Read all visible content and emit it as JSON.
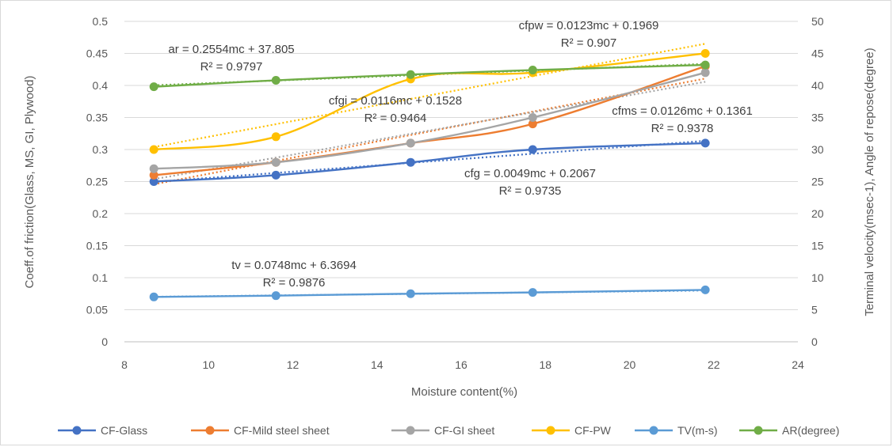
{
  "chart_data": {
    "type": "line",
    "xlabel": "Moisture content(%)",
    "ylabel_left": "Coeff.of friction(Glass, MS, GI, Plywood)",
    "ylabel_right": "Terminal velocity(msec-1), Angle of repose(degree)",
    "xlim": [
      8,
      24
    ],
    "ylim_left": [
      0,
      0.5
    ],
    "ylim_right": [
      0,
      50
    ],
    "x_ticks": [
      "8",
      "10",
      "12",
      "14",
      "16",
      "18",
      "20",
      "22",
      "24"
    ],
    "y_left_ticks": [
      "0",
      "0.05",
      "0.1",
      "0.15",
      "0.2",
      "0.25",
      "0.3",
      "0.35",
      "0.4",
      "0.45",
      "0.5"
    ],
    "y_right_ticks": [
      "0",
      "5",
      "10",
      "15",
      "20",
      "25",
      "30",
      "35",
      "40",
      "45",
      "50"
    ],
    "x": [
      8.7,
      11.6,
      14.8,
      17.7,
      21.8
    ],
    "grid": "horizontal",
    "legend": "bottom",
    "series": [
      {
        "name": "CF-Glass",
        "axis": "left",
        "color": "#4472c4",
        "values": [
          0.25,
          0.26,
          0.28,
          0.3,
          0.31
        ],
        "trend": {
          "slope": 0.0049,
          "intercept": 0.2067
        }
      },
      {
        "name": "CF-Mild steel sheet",
        "axis": "left",
        "color": "#ed7d31",
        "values": [
          0.26,
          0.28,
          0.31,
          0.34,
          0.43
        ],
        "trend": {
          "slope": 0.0126,
          "intercept": 0.1361
        }
      },
      {
        "name": "CF-GI sheet",
        "axis": "left",
        "color": "#a5a5a5",
        "values": [
          0.27,
          0.28,
          0.31,
          0.35,
          0.42
        ],
        "trend": {
          "slope": 0.0116,
          "intercept": 0.1528
        }
      },
      {
        "name": "CF-PW",
        "axis": "left",
        "color": "#ffc000",
        "values": [
          0.3,
          0.32,
          0.41,
          0.42,
          0.45
        ],
        "trend": {
          "slope": 0.0123,
          "intercept": 0.1969
        }
      },
      {
        "name": "TV(m-s)",
        "axis": "right",
        "color": "#5b9bd5",
        "values": [
          7.0,
          7.2,
          7.5,
          7.7,
          8.1
        ],
        "trend": {
          "slope": 0.0748,
          "intercept": 6.3694
        }
      },
      {
        "name": "AR(degree)",
        "axis": "right",
        "color": "#70ad47",
        "values": [
          39.8,
          40.8,
          41.7,
          42.4,
          43.2
        ],
        "trend": {
          "slope": 0.2554,
          "intercept": 37.805
        }
      }
    ],
    "annotations": [
      {
        "line1": "ar = 0.2554mc + 37.805",
        "line2": "R² = 0.9797"
      },
      {
        "line1": "cfpw = 0.0123mc + 0.1969",
        "line2": "R² = 0.907"
      },
      {
        "line1": "cfgi = 0.0116mc + 0.1528",
        "line2": "R² = 0.9464"
      },
      {
        "line1": "cfms = 0.0126mc + 0.1361",
        "line2": "R² = 0.9378"
      },
      {
        "line1": "cfg = 0.0049mc + 0.2067",
        "line2": "R² = 0.9735"
      },
      {
        "line1": "tv = 0.0748mc + 6.3694",
        "line2": "R² = 0.9876"
      }
    ]
  }
}
